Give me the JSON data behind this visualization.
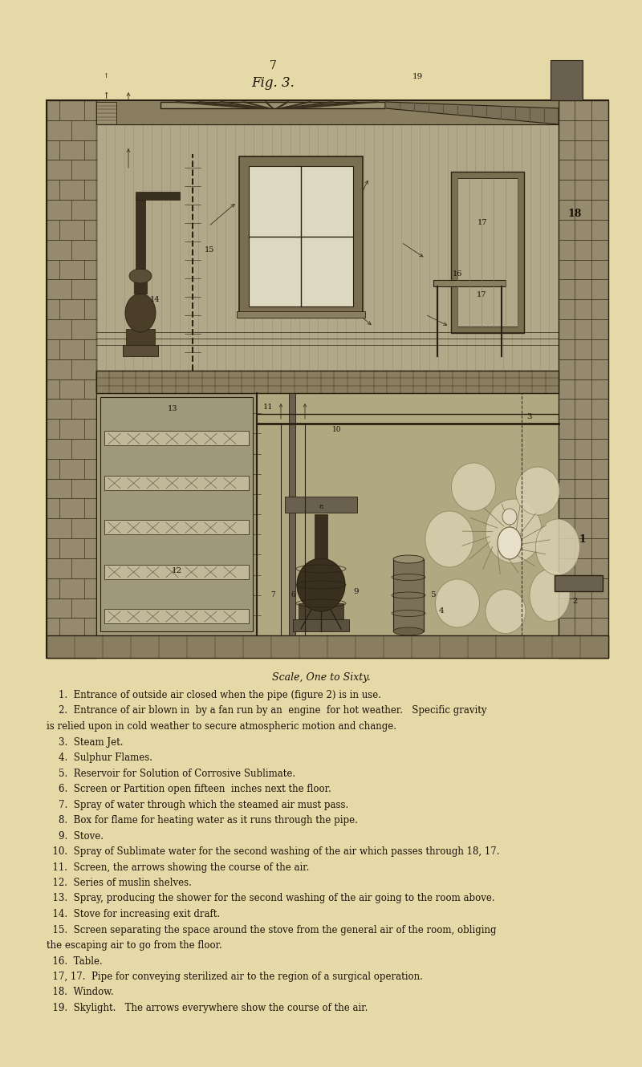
{
  "background_color": "#e6d9a8",
  "page_number": "7",
  "figure_title": "Fig. 3.",
  "page_num_fontsize": 10,
  "fig_title_fontsize": 12,
  "caption_title": "Scale, One to Sixty.",
  "caption_title_fontsize": 9,
  "caption_lines": [
    "    1.  Entrance of outside air closed when the pipe (figure 2) is in use.",
    "    2.  Entrance of air blown in  by a fan run by an  engine  for hot weather.   Specific gravity",
    "is relied upon in cold weather to secure atmospheric motion and change.",
    "    3.  Steam Jet.",
    "    4.  Sulphur Flames.",
    "    5.  Reservoir for Solution of Corrosive Sublimate.",
    "    6.  Screen or Partition open fifteen  inches next the floor.",
    "    7.  Spray of water through which the steamed air must pass.",
    "    8.  Box for flame for heating water as it runs through the pipe.",
    "    9.  Stove.",
    "  10.  Spray of Sublimate water for the second washing of the air which passes through 18, 17.",
    "  11.  Screen, the arrows showing the course of the air.",
    "  12.  Series of muslin shelves.",
    "  13.  Spray, producing the shower for the second washing of the air going to the room above.",
    "  14.  Stove for increasing exit draft.",
    "  15.  Screen separating the space around the stove from the general air of the room, obliging",
    "the escaping air to go from the floor.",
    "  16.  Table.",
    "  17, 17.  Pipe for conveying sterilized air to the region of a surgical operation.",
    "  18.  Window.",
    "  19.  Skylight.   The arrows everywhere show the course of the air."
  ],
  "caption_fontsize": 8.5,
  "text_color": "#1a1208",
  "engraving_color_light": "#b8aa88",
  "engraving_color_dark": "#3a3020",
  "engraving_color_mid": "#7a6e50",
  "wall_color": "#8a7e62",
  "line_color": "#2a2010"
}
